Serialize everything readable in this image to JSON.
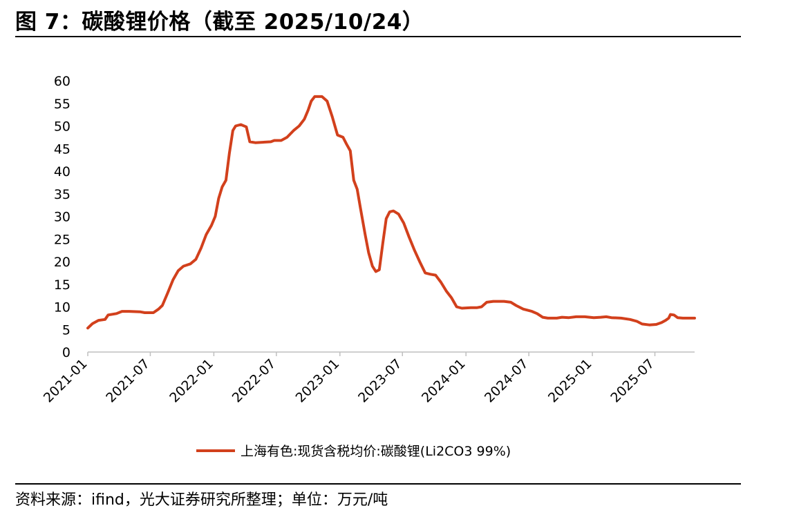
{
  "figure": {
    "title": "图 7：碳酸锂价格（截至 2025/10/24）",
    "source": "资料来源：ifind，光大证券研究所整理；单位：万元/吨"
  },
  "colors": {
    "series": "#d2401c",
    "axis": "#bfbfbf",
    "text": "#000000"
  },
  "chart_data": {
    "type": "line",
    "title": "",
    "xlabel": "",
    "ylabel": "",
    "ylim": [
      0,
      60
    ],
    "yticks": [
      0,
      5,
      10,
      15,
      20,
      25,
      30,
      35,
      40,
      45,
      50,
      55,
      60
    ],
    "xlim": [
      "2021-01-01",
      "2025-10-24"
    ],
    "xticks": [
      "2021-01",
      "2021-07",
      "2022-01",
      "2022-07",
      "2023-01",
      "2023-07",
      "2024-01",
      "2024-07",
      "2025-01",
      "2025-07"
    ],
    "grid": false,
    "legend": "bottom-center",
    "series": [
      {
        "name": "上海有色:现货含税均价:碳酸锂(Li2CO3 99%)",
        "points": [
          [
            "2021-01-01",
            5.3
          ],
          [
            "2021-01-15",
            6.3
          ],
          [
            "2021-02-01",
            7.0
          ],
          [
            "2021-02-20",
            7.2
          ],
          [
            "2021-03-01",
            8.2
          ],
          [
            "2021-03-25",
            8.5
          ],
          [
            "2021-04-10",
            9.0
          ],
          [
            "2021-05-01",
            9.0
          ],
          [
            "2021-06-01",
            8.9
          ],
          [
            "2021-06-15",
            8.7
          ],
          [
            "2021-07-10",
            8.7
          ],
          [
            "2021-07-25",
            9.5
          ],
          [
            "2021-08-05",
            10.3
          ],
          [
            "2021-08-20",
            13.0
          ],
          [
            "2021-09-05",
            16.0
          ],
          [
            "2021-09-20",
            18.0
          ],
          [
            "2021-10-05",
            19.0
          ],
          [
            "2021-10-25",
            19.5
          ],
          [
            "2021-11-10",
            20.5
          ],
          [
            "2021-11-25",
            23.0
          ],
          [
            "2021-12-10",
            26.0
          ],
          [
            "2021-12-25",
            28.0
          ],
          [
            "2022-01-05",
            30.0
          ],
          [
            "2022-01-15",
            34.0
          ],
          [
            "2022-01-25",
            36.5
          ],
          [
            "2022-02-05",
            38.0
          ],
          [
            "2022-02-15",
            44.0
          ],
          [
            "2022-02-25",
            49.0
          ],
          [
            "2022-03-05",
            50.0
          ],
          [
            "2022-03-20",
            50.3
          ],
          [
            "2022-04-05",
            49.8
          ],
          [
            "2022-04-15",
            46.5
          ],
          [
            "2022-05-01",
            46.3
          ],
          [
            "2022-06-15",
            46.5
          ],
          [
            "2022-06-25",
            46.8
          ],
          [
            "2022-07-15",
            46.8
          ],
          [
            "2022-08-01",
            47.5
          ],
          [
            "2022-08-20",
            49.0
          ],
          [
            "2022-09-05",
            50.0
          ],
          [
            "2022-09-20",
            51.5
          ],
          [
            "2022-10-01",
            53.5
          ],
          [
            "2022-10-10",
            55.5
          ],
          [
            "2022-10-20",
            56.5
          ],
          [
            "2022-11-10",
            56.5
          ],
          [
            "2022-11-25",
            55.5
          ],
          [
            "2022-12-10",
            52.0
          ],
          [
            "2022-12-25",
            48.0
          ],
          [
            "2023-01-10",
            47.5
          ],
          [
            "2023-01-20",
            46.0
          ],
          [
            "2023-01-31",
            44.5
          ],
          [
            "2023-02-10",
            38.0
          ],
          [
            "2023-02-20",
            36.0
          ],
          [
            "2023-03-01",
            32.0
          ],
          [
            "2023-03-15",
            26.0
          ],
          [
            "2023-03-25",
            22.0
          ],
          [
            "2023-04-05",
            19.0
          ],
          [
            "2023-04-15",
            17.8
          ],
          [
            "2023-04-25",
            18.2
          ],
          [
            "2023-05-05",
            24.0
          ],
          [
            "2023-05-15",
            29.5
          ],
          [
            "2023-05-25",
            31.0
          ],
          [
            "2023-06-05",
            31.2
          ],
          [
            "2023-06-20",
            30.5
          ],
          [
            "2023-07-05",
            28.5
          ],
          [
            "2023-07-20",
            25.5
          ],
          [
            "2023-08-05",
            22.5
          ],
          [
            "2023-08-20",
            20.0
          ],
          [
            "2023-09-05",
            17.5
          ],
          [
            "2023-09-20",
            17.2
          ],
          [
            "2023-10-05",
            17.0
          ],
          [
            "2023-10-20",
            15.5
          ],
          [
            "2023-11-05",
            13.5
          ],
          [
            "2023-11-20",
            12.0
          ],
          [
            "2023-12-05",
            10.0
          ],
          [
            "2023-12-20",
            9.7
          ],
          [
            "2024-01-15",
            9.8
          ],
          [
            "2024-02-01",
            9.8
          ],
          [
            "2024-02-15",
            10.0
          ],
          [
            "2024-03-01",
            11.0
          ],
          [
            "2024-03-20",
            11.2
          ],
          [
            "2024-04-20",
            11.2
          ],
          [
            "2024-05-10",
            11.0
          ],
          [
            "2024-05-25",
            10.3
          ],
          [
            "2024-06-15",
            9.5
          ],
          [
            "2024-07-10",
            9.0
          ],
          [
            "2024-07-25",
            8.5
          ],
          [
            "2024-08-10",
            7.7
          ],
          [
            "2024-08-25",
            7.5
          ],
          [
            "2024-09-20",
            7.5
          ],
          [
            "2024-10-05",
            7.7
          ],
          [
            "2024-10-25",
            7.6
          ],
          [
            "2024-11-15",
            7.8
          ],
          [
            "2024-12-10",
            7.8
          ],
          [
            "2025-01-05",
            7.6
          ],
          [
            "2025-01-25",
            7.7
          ],
          [
            "2025-02-10",
            7.8
          ],
          [
            "2025-02-25",
            7.6
          ],
          [
            "2025-03-25",
            7.5
          ],
          [
            "2025-04-20",
            7.2
          ],
          [
            "2025-05-10",
            6.8
          ],
          [
            "2025-05-25",
            6.2
          ],
          [
            "2025-06-15",
            6.0
          ],
          [
            "2025-07-05",
            6.1
          ],
          [
            "2025-07-20",
            6.5
          ],
          [
            "2025-08-01",
            7.0
          ],
          [
            "2025-08-10",
            7.5
          ],
          [
            "2025-08-15",
            8.3
          ],
          [
            "2025-08-25",
            8.2
          ],
          [
            "2025-09-05",
            7.6
          ],
          [
            "2025-09-20",
            7.5
          ],
          [
            "2025-10-10",
            7.5
          ],
          [
            "2025-10-24",
            7.5
          ]
        ]
      }
    ]
  }
}
